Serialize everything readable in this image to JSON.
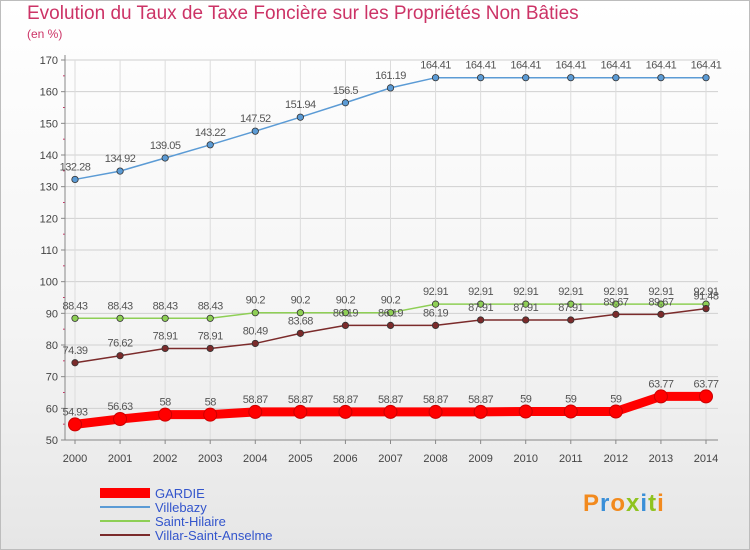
{
  "header": {
    "title": "Evolution du Taux de Taxe Foncière sur les Propriétés Non Bâties",
    "unit": "(en %)"
  },
  "logo": {
    "text": "Proxiti",
    "colors": [
      "#f28a1e",
      "#3a8fd8",
      "#f28a1e",
      "#8fc31f",
      "#3a8fd8",
      "#8fc31f",
      "#f28a1e"
    ]
  },
  "chart_data": {
    "type": "line",
    "title": "Evolution du Taux de Taxe Foncière sur les Propriétés Non Bâties",
    "ylabel": "(en %)",
    "xlabel": "",
    "ylim": [
      50,
      170
    ],
    "yticks": [
      50,
      60,
      70,
      80,
      90,
      100,
      110,
      120,
      130,
      140,
      150,
      160,
      170
    ],
    "categories": [
      "2000",
      "2001",
      "2002",
      "2003",
      "2004",
      "2005",
      "2006",
      "2007",
      "2008",
      "2009",
      "2010",
      "2011",
      "2012",
      "2013",
      "2014"
    ],
    "legend_position": "bottom-left",
    "series": [
      {
        "name": "GARDIE",
        "color": "#ff0000",
        "values": [
          54.93,
          56.63,
          58,
          58,
          58.87,
          58.87,
          58.87,
          58.87,
          58.87,
          58.87,
          59,
          59,
          59,
          63.77,
          63.77
        ],
        "labels": [
          "54.93",
          "56.63",
          "58",
          "58",
          "58.87",
          "58.87",
          "58.87",
          "58.87",
          "58.87",
          "58.87",
          "59",
          "59",
          "59",
          "63.77",
          "63.77"
        ]
      },
      {
        "name": "Villebazy",
        "color": "#5b9bd5",
        "values": [
          132.28,
          134.92,
          139.05,
          143.22,
          147.52,
          151.94,
          156.5,
          161.19,
          164.41,
          164.41,
          164.41,
          164.41,
          164.41,
          164.41,
          164.41
        ],
        "labels": [
          "132.28",
          "134.92",
          "139.05",
          "143.22",
          "147.52",
          "151.94",
          "156.5",
          "161.19",
          "164.41",
          "164.41",
          "164.41",
          "164.41",
          "164.41",
          "164.41",
          "164.41"
        ]
      },
      {
        "name": "Saint-Hilaire",
        "color": "#8ecf55",
        "values": [
          88.43,
          88.43,
          88.43,
          88.43,
          90.2,
          90.2,
          90.2,
          90.2,
          92.91,
          92.91,
          92.91,
          92.91,
          92.91,
          92.91,
          92.91
        ],
        "labels": [
          "88.43",
          "88.43",
          "88.43",
          "88.43",
          "90.2",
          "90.2",
          "90.2",
          "90.2",
          "92.91",
          "92.91",
          "92.91",
          "92.91",
          "92.91",
          "92.91",
          "92.91"
        ]
      },
      {
        "name": "Villar-Saint-Anselme",
        "color": "#7b2b2b",
        "values": [
          74.39,
          76.62,
          78.91,
          78.91,
          80.49,
          83.68,
          86.19,
          86.19,
          86.19,
          87.91,
          87.91,
          87.91,
          89.67,
          89.67,
          91.48
        ],
        "labels": [
          "74.39",
          "76.62",
          "78.91",
          "78.91",
          "80.49",
          "83.68",
          "86.19",
          "86.19",
          "86.19",
          "87.91",
          "87.91",
          "87.91",
          "89.67",
          "89.67",
          "91.48"
        ]
      }
    ]
  }
}
